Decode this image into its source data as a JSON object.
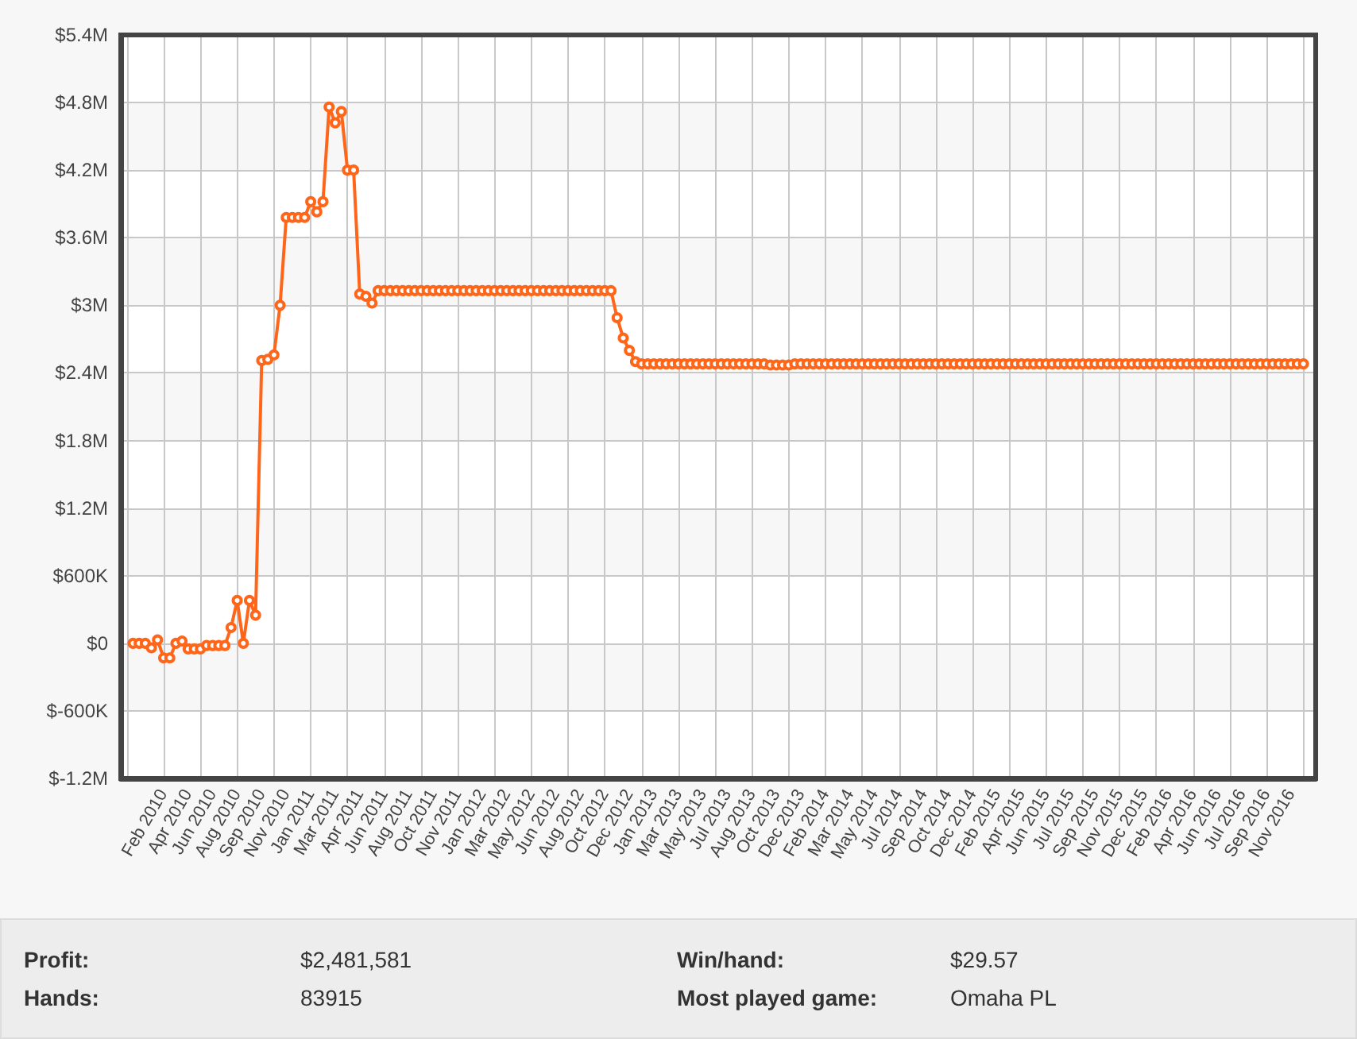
{
  "chart_data": {
    "type": "line",
    "categories": [
      null,
      null,
      null,
      null,
      null,
      null,
      null,
      "Feb 2010",
      null,
      null,
      null,
      "Apr 2010",
      null,
      null,
      null,
      "Jun 2010",
      null,
      null,
      null,
      "Aug 2010",
      null,
      null,
      null,
      "Sep 2010",
      null,
      null,
      null,
      "Nov 2010",
      null,
      null,
      null,
      "Jan 2011",
      null,
      null,
      null,
      "Mar 2011",
      null,
      null,
      null,
      "Apr 2011",
      null,
      null,
      null,
      "Jun 2011",
      null,
      null,
      null,
      "Aug 2011",
      null,
      null,
      null,
      "Oct 2011",
      null,
      null,
      null,
      "Nov 2011",
      null,
      null,
      null,
      "Jan 2012",
      null,
      null,
      null,
      "Mar 2012",
      null,
      null,
      null,
      "May 2012",
      null,
      null,
      null,
      "Jun 2012",
      null,
      null,
      null,
      "Aug 2012",
      null,
      null,
      null,
      "Oct 2012",
      null,
      null,
      null,
      "Dec 2012",
      null,
      null,
      null,
      "Jan 2013",
      null,
      null,
      null,
      "Mar 2013",
      null,
      null,
      null,
      "May 2013",
      null,
      null,
      null,
      "Jul 2013",
      null,
      null,
      null,
      "Aug 2013",
      null,
      null,
      null,
      "Oct 2013",
      null,
      null,
      null,
      "Dec 2013",
      null,
      null,
      null,
      "Feb 2014",
      null,
      null,
      null,
      "Mar 2014",
      null,
      null,
      null,
      "May 2014",
      null,
      null,
      null,
      "Jul 2014",
      null,
      null,
      null,
      "Sep 2014",
      null,
      null,
      null,
      "Oct 2014",
      null,
      null,
      null,
      "Dec 2014",
      null,
      null,
      null,
      "Feb 2015",
      null,
      null,
      null,
      "Apr 2015",
      null,
      null,
      null,
      "Jun 2015",
      null,
      null,
      null,
      "Jul 2015",
      null,
      null,
      null,
      "Sep 2015",
      null,
      null,
      null,
      "Nov 2015",
      null,
      null,
      null,
      "Dec 2015",
      null,
      null,
      null,
      "Feb 2016",
      null,
      null,
      null,
      "Apr 2016",
      null,
      null,
      null,
      "Jun 2016",
      null,
      null,
      null,
      "Jul 2016",
      null,
      null,
      null,
      "Sep 2016",
      null,
      null,
      null,
      "Nov 2016",
      null,
      null,
      null,
      null
    ],
    "values": [
      null,
      null,
      0,
      0,
      0,
      -40000,
      30000,
      -130000,
      -130000,
      0,
      20000,
      -50000,
      -50000,
      -50000,
      -20000,
      -20000,
      -20000,
      -20000,
      140000,
      380000,
      0,
      380000,
      250000,
      2510000,
      2520000,
      2560000,
      3000000,
      3780000,
      3780000,
      3780000,
      3780000,
      3920000,
      3830000,
      3920000,
      4760000,
      4620000,
      4720000,
      4200000,
      4200000,
      3100000,
      3080000,
      3020000,
      3130000,
      3130000,
      3130000,
      3130000,
      3130000,
      3130000,
      3130000,
      3130000,
      3130000,
      3130000,
      3130000,
      3130000,
      3130000,
      3130000,
      3130000,
      3130000,
      3130000,
      3130000,
      3130000,
      3130000,
      3130000,
      3130000,
      3130000,
      3130000,
      3130000,
      3130000,
      3130000,
      3130000,
      3130000,
      3130000,
      3130000,
      3130000,
      3130000,
      3130000,
      3130000,
      3130000,
      3130000,
      3130000,
      3130000,
      2890000,
      2710000,
      2600000,
      2500000,
      2480000,
      2480000,
      2480000,
      2480000,
      2480000,
      2480000,
      2480000,
      2480000,
      2480000,
      2480000,
      2480000,
      2480000,
      2480000,
      2480000,
      2480000,
      2480000,
      2480000,
      2480000,
      2480000,
      2480000,
      2480000,
      2470000,
      2470000,
      2470000,
      2470000,
      2480000,
      2480000,
      2480000,
      2480000,
      2480000,
      2480000,
      2480000,
      2480000,
      2480000,
      2480000,
      2480000,
      2480000,
      2480000,
      2480000,
      2480000,
      2480000,
      2480000,
      2480000,
      2480000,
      2480000,
      2480000,
      2480000,
      2480000,
      2480000,
      2480000,
      2480000,
      2480000,
      2480000,
      2480000,
      2480000,
      2480000,
      2480000,
      2480000,
      2480000,
      2480000,
      2480000,
      2480000,
      2480000,
      2480000,
      2480000,
      2480000,
      2480000,
      2480000,
      2480000,
      2480000,
      2480000,
      2480000,
      2480000,
      2480000,
      2480000,
      2480000,
      2480000,
      2480000,
      2480000,
      2480000,
      2480000,
      2480000,
      2480000,
      2480000,
      2480000,
      2480000,
      2480000,
      2480000,
      2480000,
      2480000,
      2480000,
      2480000,
      2480000,
      2480000,
      2480000,
      2480000,
      2480000,
      2480000,
      2480000,
      2480000,
      2480000,
      2480000,
      2480000,
      2480000,
      2480000,
      2480000,
      2480000,
      2480000,
      2480000,
      null,
      null
    ],
    "color": "#ff6619",
    "ylim": [
      -1200000,
      5400000
    ],
    "yticks": [
      {
        "value": -1200000,
        "label": "$-1.2M"
      },
      {
        "value": -600000,
        "label": "$-600K"
      },
      {
        "value": 0,
        "label": "$0"
      },
      {
        "value": 600000,
        "label": "$600K"
      },
      {
        "value": 1200000,
        "label": "$1.2M"
      },
      {
        "value": 1800000,
        "label": "$1.8M"
      },
      {
        "value": 2400000,
        "label": "$2.4M"
      },
      {
        "value": 3000000,
        "label": "$3M"
      },
      {
        "value": 3600000,
        "label": "$3.6M"
      },
      {
        "value": 4200000,
        "label": "$4.2M"
      },
      {
        "value": 4800000,
        "label": "$4.8M"
      },
      {
        "value": 5400000,
        "label": "$5.4M"
      }
    ],
    "grid": true,
    "marker": "circle",
    "annotations": [
      "Profit:",
      "$2,481,581",
      "Win/hand:",
      "$29.57",
      "Hands:",
      "83915",
      "Most played game:",
      "Omaha PL"
    ]
  }
}
